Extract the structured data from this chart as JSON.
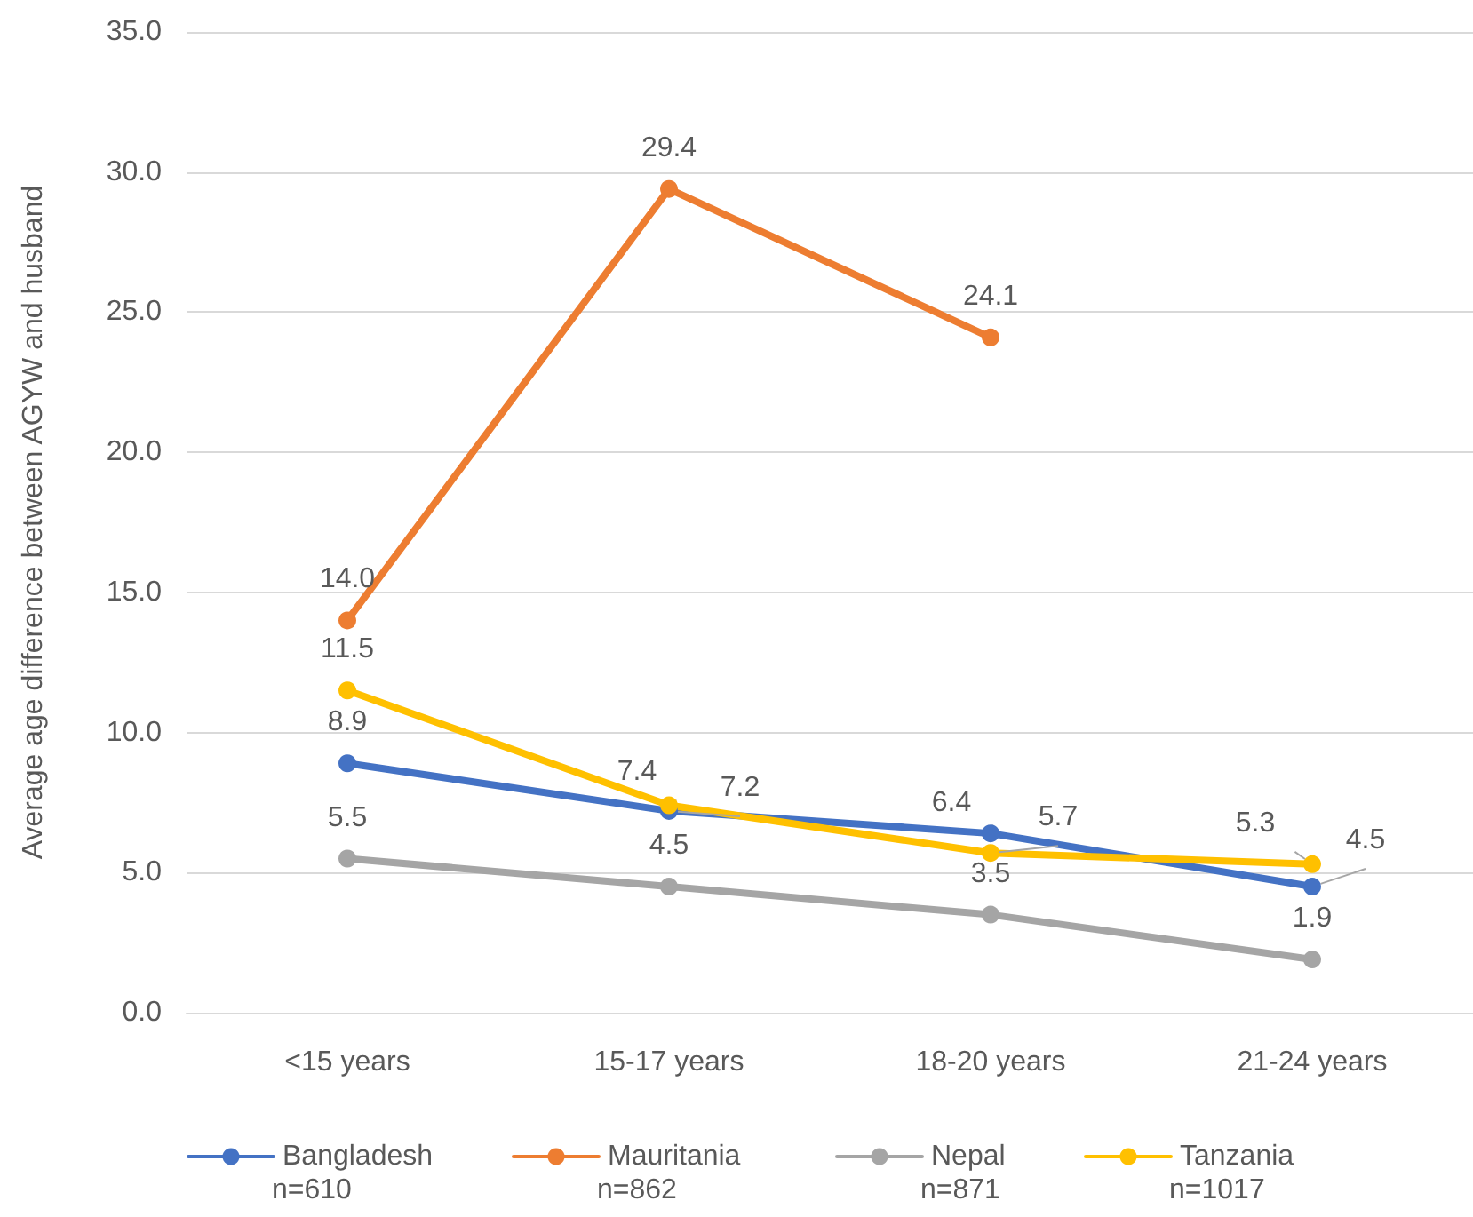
{
  "chart_data": {
    "type": "line",
    "ylabel": "Average age difference between AGYW and husband",
    "categories": [
      "<15 years",
      "15-17 years",
      "18-20 years",
      "21-24 years"
    ],
    "series": [
      {
        "name": "Bangladesh",
        "color": "#4472c4",
        "values": [
          8.9,
          7.2,
          6.4,
          4.5
        ],
        "value_labels": [
          "8.9",
          "7.2",
          "6.4",
          "4.5"
        ]
      },
      {
        "name": "Mauritania",
        "color": "#ed7d31",
        "values": [
          14.0,
          29.4,
          24.1,
          null
        ],
        "value_labels": [
          "14.0",
          "29.4",
          "24.1",
          null
        ]
      },
      {
        "name": "Nepal",
        "color": "#a5a5a5",
        "values": [
          5.5,
          4.5,
          3.5,
          1.9
        ],
        "value_labels": [
          "5.5",
          "4.5",
          "3.5",
          "1.9"
        ]
      },
      {
        "name": "Tanzania",
        "color": "#ffc000",
        "values": [
          11.5,
          7.4,
          5.7,
          5.3
        ],
        "value_labels": [
          "11.5",
          "7.4",
          "5.7",
          "5.3"
        ]
      }
    ],
    "ylim": [
      0,
      35
    ],
    "yticks": [
      {
        "value": 0,
        "label": "0.0"
      },
      {
        "value": 5,
        "label": "5.0"
      },
      {
        "value": 10,
        "label": "10.0"
      },
      {
        "value": 15,
        "label": "15.0"
      },
      {
        "value": 20,
        "label": "20.0"
      },
      {
        "value": 25,
        "label": "25.0"
      },
      {
        "value": 30,
        "label": "30.0"
      },
      {
        "value": 35,
        "label": "35.0"
      }
    ],
    "grid": "y",
    "legend": "bottom",
    "marker": "circle",
    "line_style": "solid",
    "annotations": [
      "n=610",
      "n=862",
      "n=871",
      "n=1017"
    ]
  }
}
